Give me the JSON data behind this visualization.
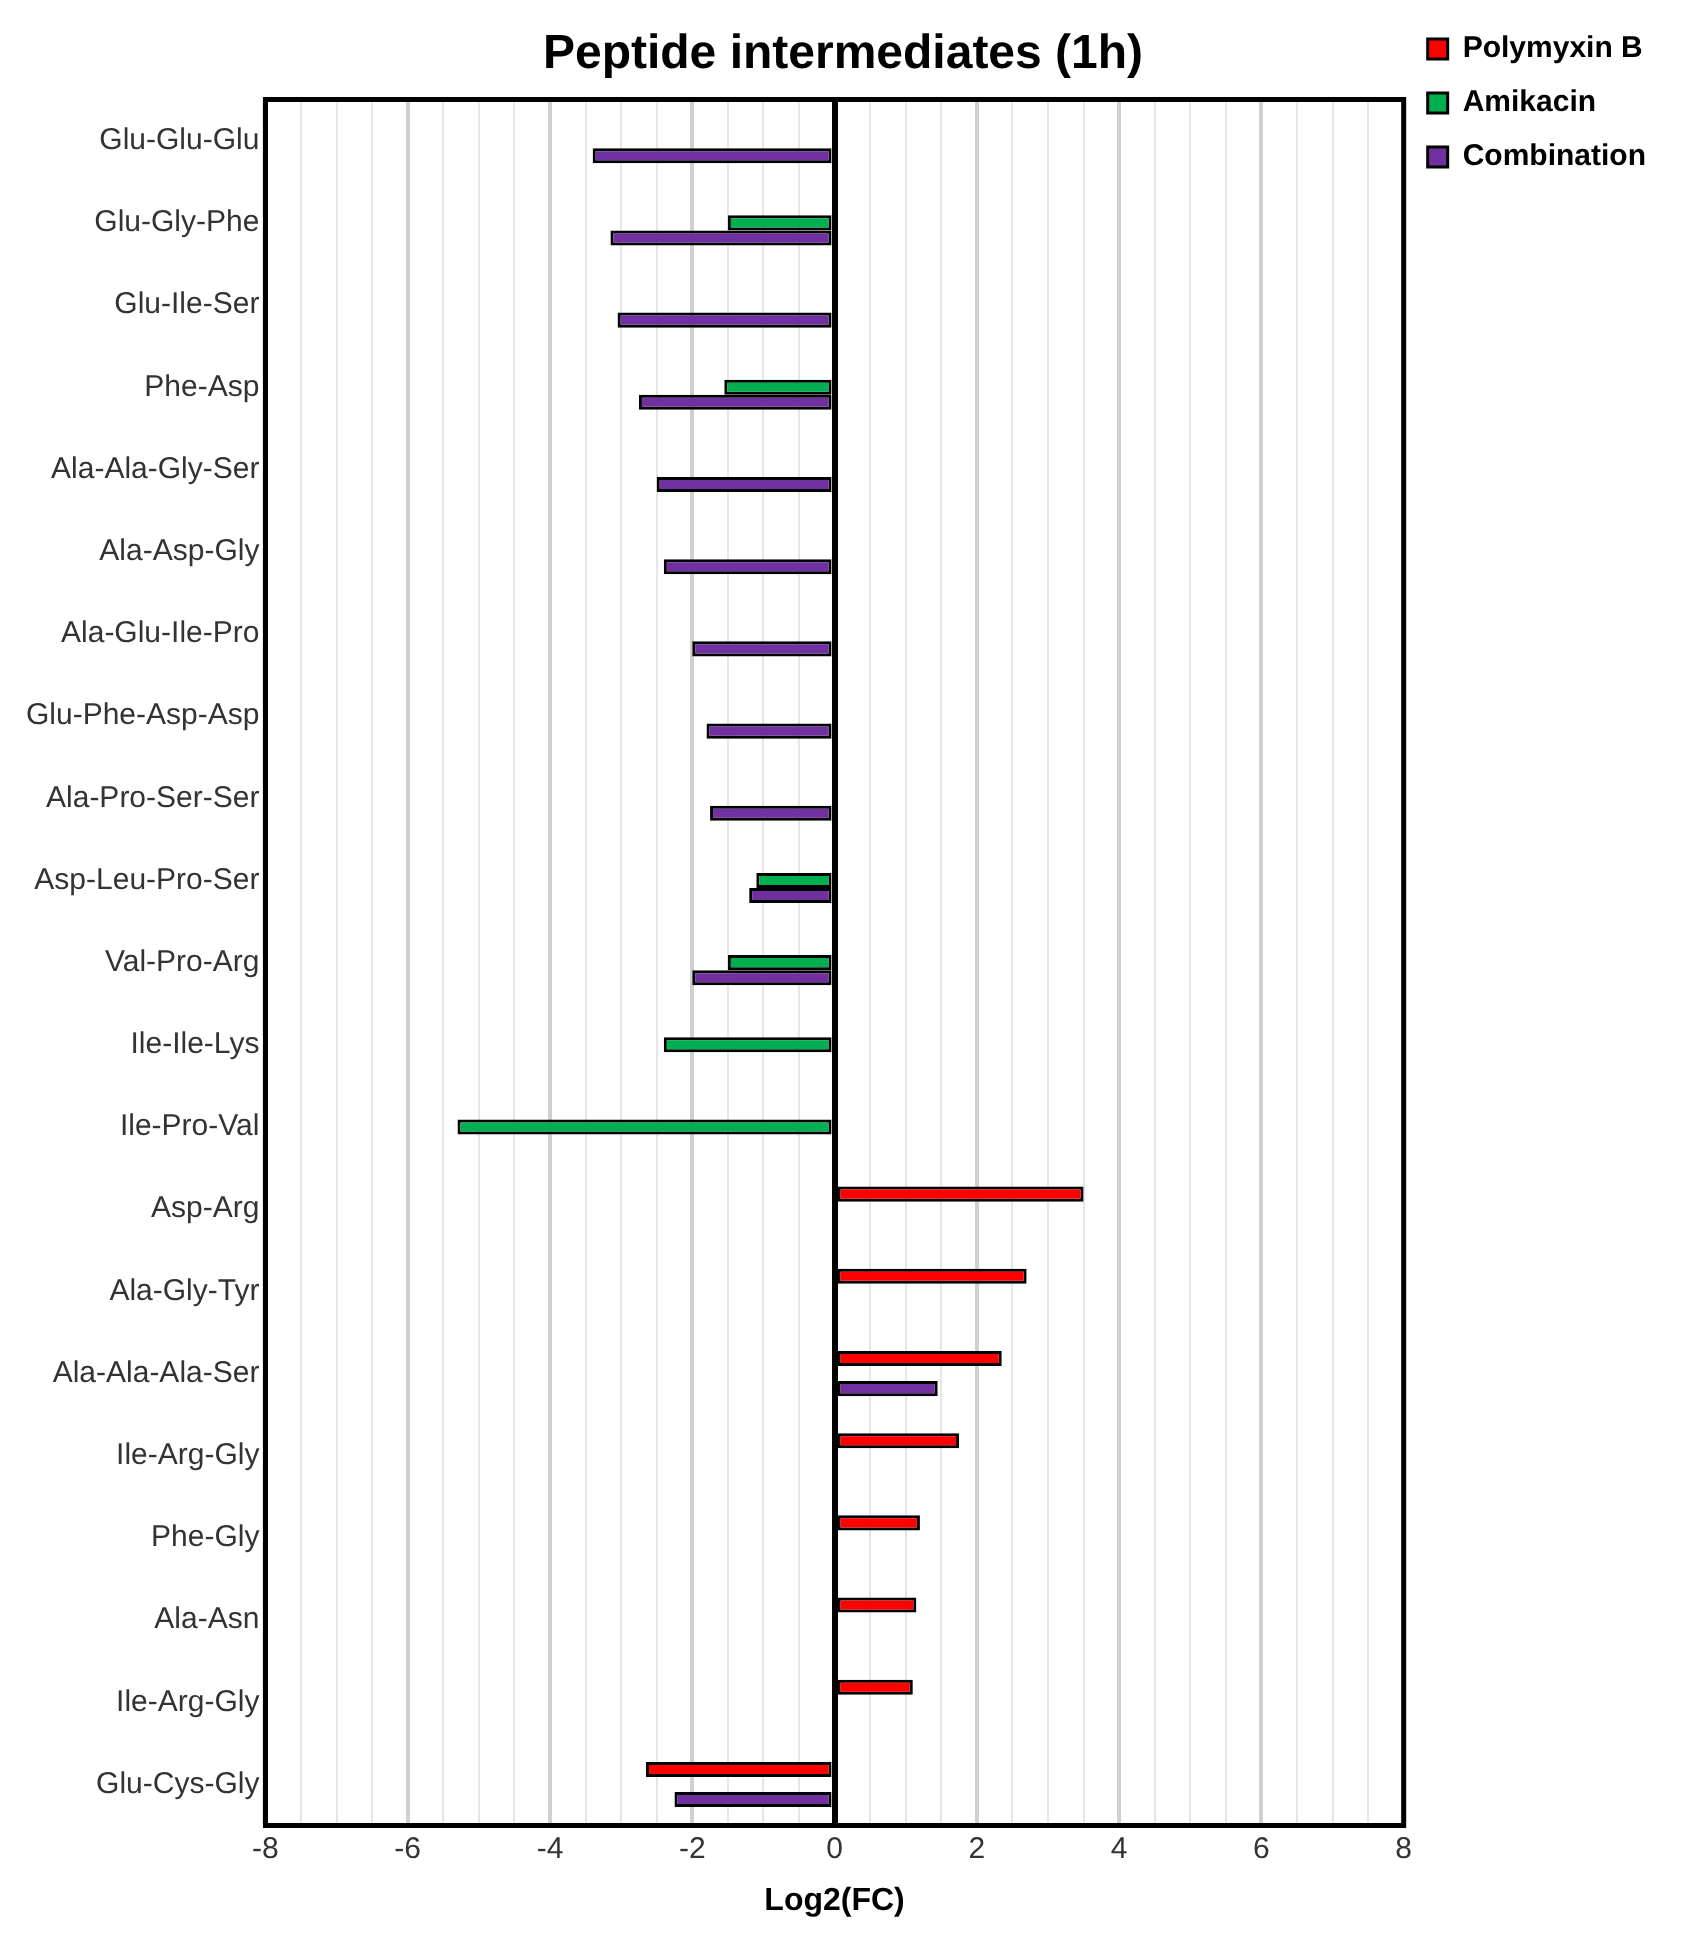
{
  "chart_data": {
    "type": "bar",
    "orientation": "horizontal",
    "title": "Peptide intermediates (1h)",
    "xlabel": "Log2(FC)",
    "categories": [
      "Glu-Glu-Glu",
      "Glu-Gly-Phe",
      "Glu-Ile-Ser",
      "Phe-Asp",
      "Ala-Ala-Gly-Ser",
      "Ala-Asp-Gly",
      "Ala-Glu-Ile-Pro",
      "Glu-Phe-Asp-Asp",
      "Ala-Pro-Ser-Ser",
      "Asp-Leu-Pro-Ser",
      "Val-Pro-Arg",
      "Ile-Ile-Lys",
      "Ile-Pro-Val",
      "Asp-Arg",
      "Ala-Gly-Tyr",
      "Ala-Ala-Ala-Ser",
      "Ile-Arg-Gly",
      "Phe-Gly",
      "Ala-Asn",
      "Ile-Arg-Gly",
      "Glu-Cys-Gly"
    ],
    "series": [
      {
        "name": "Polymyxin B",
        "color": "#ff0000",
        "values": [
          null,
          null,
          null,
          null,
          null,
          null,
          null,
          null,
          null,
          null,
          null,
          null,
          null,
          3.5,
          2.7,
          2.35,
          1.75,
          1.2,
          1.15,
          1.1,
          -2.65
        ]
      },
      {
        "name": "Amikacin",
        "color": "#00b050",
        "values": [
          null,
          -1.5,
          null,
          -1.55,
          null,
          null,
          null,
          null,
          null,
          -1.1,
          -1.5,
          -2.4,
          -5.3,
          null,
          null,
          null,
          null,
          null,
          null,
          null,
          null
        ]
      },
      {
        "name": "Combination",
        "color": "#7030a0",
        "values": [
          -3.4,
          -3.15,
          -3.05,
          -2.75,
          -2.5,
          -2.4,
          -2.0,
          -1.8,
          -1.75,
          -1.2,
          -2.0,
          null,
          null,
          null,
          null,
          1.45,
          null,
          null,
          null,
          null,
          -2.25
        ]
      }
    ],
    "xlim": [
      -8,
      8
    ],
    "xticks": [
      -8,
      {
        "value": -7.5,
        "label": null
      },
      {
        "value": -7,
        "label": null
      },
      {
        "value": -6.5,
        "label": null
      },
      -6,
      {
        "value": -5.5,
        "label": null
      },
      {
        "value": -5,
        "label": null
      },
      {
        "value": -4.5,
        "label": null
      },
      -4,
      {
        "value": -3.5,
        "label": null
      },
      {
        "value": -3,
        "label": null
      },
      {
        "value": -2.5,
        "label": null
      },
      -2,
      {
        "value": -1.5,
        "label": null
      },
      {
        "value": -1,
        "label": null
      },
      {
        "value": -0.5,
        "label": null
      },
      0,
      {
        "value": 0.5,
        "label": null
      },
      {
        "value": 1,
        "label": null
      },
      {
        "value": 1.5,
        "label": null
      },
      2,
      {
        "value": 2.5,
        "label": null
      },
      {
        "value": 3,
        "label": null
      },
      {
        "value": 3.5,
        "label": null
      },
      4,
      {
        "value": 4.5,
        "label": null
      },
      {
        "value": 5,
        "label": null
      },
      {
        "value": 5.5,
        "label": null
      },
      6,
      {
        "value": 6.5,
        "label": null
      },
      {
        "value": 7,
        "label": null
      },
      {
        "value": 7.5,
        "label": null
      },
      8
    ],
    "grid": "x",
    "legend": "top right"
  }
}
